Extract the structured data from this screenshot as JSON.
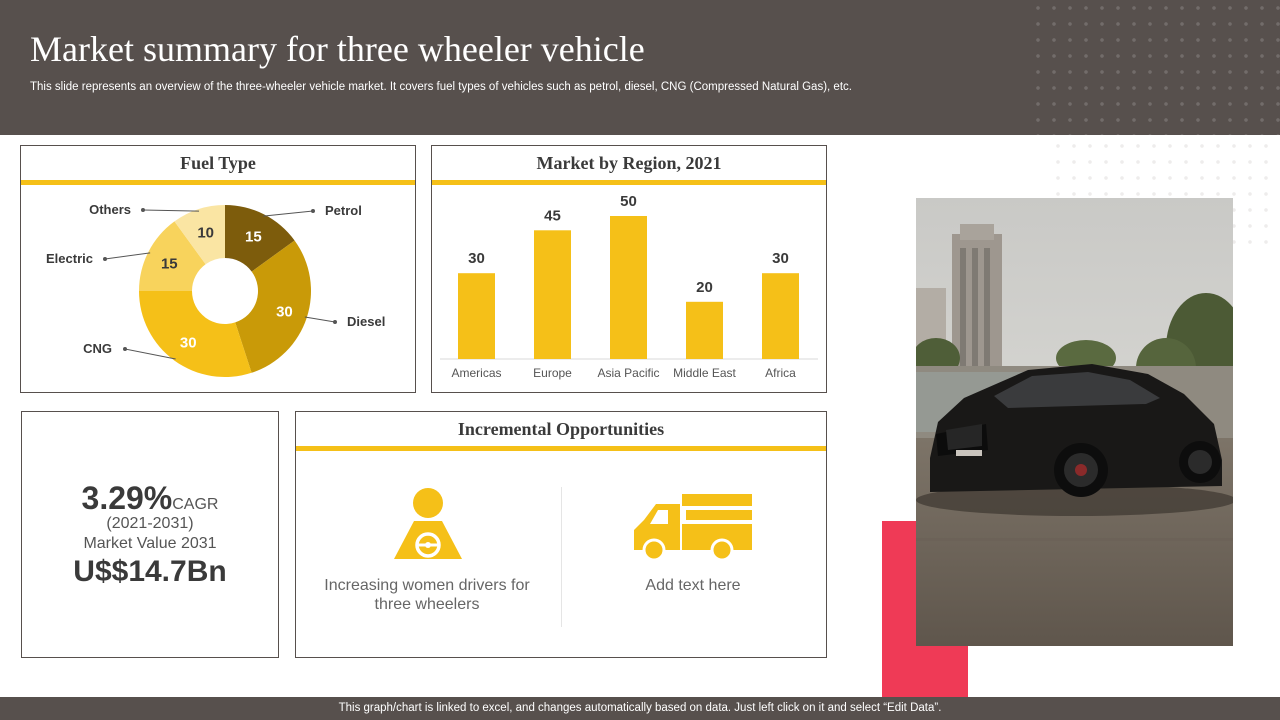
{
  "header": {
    "title": "Market summary for three wheeler vehicle",
    "subtitle": "This slide represents an overview of the three-wheeler vehicle market. It covers fuel types of vehicles such as petrol, diesel, CNG (Compressed Natural Gas), etc."
  },
  "fuel_panel": {
    "title": "Fuel Type"
  },
  "region_panel": {
    "title": "Market by Region, 2021"
  },
  "cagr_panel": {
    "cagr_value": "3.29%",
    "cagr_label": "CAGR",
    "period": "(2021-2031)",
    "market_label": "Market Value 2031",
    "market_value": "U$$14.7Bn"
  },
  "opportunities": {
    "title": "Incremental Opportunities",
    "item1": {
      "text": "Increasing women drivers for three wheelers",
      "icon": "woman-driver-icon"
    },
    "item2": {
      "text": "Add text here",
      "icon": "truck-icon"
    }
  },
  "footer": {
    "text": "This graph/chart is linked to excel,  and changes automatically based on data. Just left click on it and select “Edit Data”."
  },
  "colors": {
    "header_bg": "#57504d",
    "accent": "#f5c018",
    "red": "#ef3a56"
  },
  "chart_data": [
    {
      "type": "pie",
      "title": "Fuel Type",
      "labels": [
        "Petrol",
        "Diesel",
        "CNG",
        "Electric",
        "Others"
      ],
      "values": [
        15,
        30,
        30,
        15,
        10
      ],
      "colors": [
        "#7d5c0c",
        "#c99a08",
        "#f5c018",
        "#f8d35c",
        "#fae5a3"
      ],
      "label_colors": [
        "#ffffff",
        "#ffffff",
        "#ffffff",
        "#3a3a3a",
        "#3a3a3a"
      ]
    },
    {
      "type": "bar",
      "title": "Market by Region, 2021",
      "categories": [
        "Americas",
        "Europe",
        "Asia Pacific",
        "Middle East",
        "Africa"
      ],
      "values": [
        30,
        45,
        50,
        20,
        30
      ],
      "ylim": [
        0,
        50
      ],
      "color": "#f5c018"
    }
  ]
}
